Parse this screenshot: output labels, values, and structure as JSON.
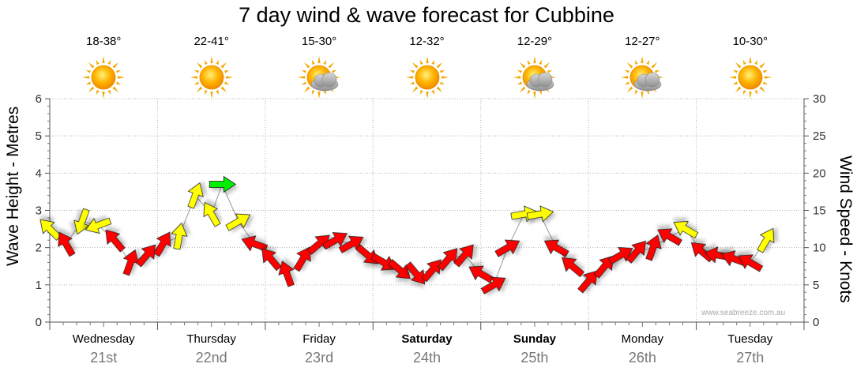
{
  "title": "7 day wind & wave forecast for Cubbine",
  "watermark": "www.seabreeze.com.au",
  "days": [
    {
      "name": "Wednesday",
      "date": "21st",
      "temp": "18-38°",
      "icon": "sun-icon",
      "bold": false
    },
    {
      "name": "Thursday",
      "date": "22nd",
      "temp": "22-41°",
      "icon": "sun-icon",
      "bold": false
    },
    {
      "name": "Friday",
      "date": "23rd",
      "temp": "15-30°",
      "icon": "sun-cloud-icon",
      "bold": false
    },
    {
      "name": "Saturday",
      "date": "24th",
      "temp": "12-32°",
      "icon": "sun-icon",
      "bold": true
    },
    {
      "name": "Sunday",
      "date": "25th",
      "temp": "12-29°",
      "icon": "sun-cloud-icon",
      "bold": true
    },
    {
      "name": "Monday",
      "date": "26th",
      "temp": "12-27°",
      "icon": "sun-cloud-icon",
      "bold": false
    },
    {
      "name": "Tuesday",
      "date": "27th",
      "temp": "10-30°",
      "icon": "sun-icon",
      "bold": false
    }
  ],
  "chart_data": {
    "type": "line",
    "title": "7 day wind & wave forecast for Cubbine",
    "ylabel": "Wave Height - Metres",
    "y2label": "Wind Speed - Knots",
    "ylim": [
      0,
      6
    ],
    "y2lim": [
      0,
      30
    ],
    "yticks": [
      "0",
      "1",
      "2",
      "3",
      "4",
      "5",
      "6"
    ],
    "y2ticks": [
      "0",
      "5",
      "10",
      "15",
      "20",
      "25",
      "30"
    ],
    "grid": true,
    "arrow_colors": {
      "light": "#ffff00",
      "moderate": "#ff0000",
      "strong": "#00ee00"
    },
    "series": [
      {
        "name": "Wind Speed - Knots",
        "points": [
          {
            "d": 0.0,
            "kt": 12.5,
            "dir": 315,
            "c": "light"
          },
          {
            "d": 0.15,
            "kt": 10.5,
            "dir": 330,
            "c": "moderate"
          },
          {
            "d": 0.3,
            "kt": 13.5,
            "dir": 200,
            "c": "light"
          },
          {
            "d": 0.45,
            "kt": 13,
            "dir": 250,
            "c": "light"
          },
          {
            "d": 0.6,
            "kt": 11,
            "dir": 320,
            "c": "moderate"
          },
          {
            "d": 0.75,
            "kt": 8,
            "dir": 20,
            "c": "moderate"
          },
          {
            "d": 0.9,
            "kt": 9,
            "dir": 40,
            "c": "moderate"
          },
          {
            "d": 1.05,
            "kt": 10.5,
            "dir": 30,
            "c": "moderate"
          },
          {
            "d": 1.2,
            "kt": 11.5,
            "dir": 10,
            "c": "light"
          },
          {
            "d": 1.35,
            "kt": 17,
            "dir": 20,
            "c": "light"
          },
          {
            "d": 1.5,
            "kt": 14.5,
            "dir": 330,
            "c": "light"
          },
          {
            "d": 1.6,
            "kt": 18.5,
            "dir": 90,
            "c": "strong"
          },
          {
            "d": 1.75,
            "kt": 13.5,
            "dir": 60,
            "c": "light"
          },
          {
            "d": 1.9,
            "kt": 10.5,
            "dir": 290,
            "c": "moderate"
          },
          {
            "d": 2.05,
            "kt": 8.5,
            "dir": 320,
            "c": "moderate"
          },
          {
            "d": 2.2,
            "kt": 6.5,
            "dir": 340,
            "c": "moderate"
          },
          {
            "d": 2.35,
            "kt": 8.5,
            "dir": 30,
            "c": "moderate"
          },
          {
            "d": 2.5,
            "kt": 10.5,
            "dir": 50,
            "c": "moderate"
          },
          {
            "d": 2.65,
            "kt": 11,
            "dir": 60,
            "c": "moderate"
          },
          {
            "d": 2.8,
            "kt": 10.5,
            "dir": 60,
            "c": "moderate"
          },
          {
            "d": 2.95,
            "kt": 9,
            "dir": 130,
            "c": "moderate"
          },
          {
            "d": 3.1,
            "kt": 8,
            "dir": 120,
            "c": "moderate"
          },
          {
            "d": 3.25,
            "kt": 7,
            "dir": 130,
            "c": "moderate"
          },
          {
            "d": 3.4,
            "kt": 6.5,
            "dir": 140,
            "c": "moderate"
          },
          {
            "d": 3.55,
            "kt": 7,
            "dir": 40,
            "c": "moderate"
          },
          {
            "d": 3.7,
            "kt": 8.5,
            "dir": 40,
            "c": "moderate"
          },
          {
            "d": 3.85,
            "kt": 9,
            "dir": 40,
            "c": "moderate"
          },
          {
            "d": 4.0,
            "kt": 6.5,
            "dir": 300,
            "c": "moderate"
          },
          {
            "d": 4.12,
            "kt": 5,
            "dir": 60,
            "c": "moderate"
          },
          {
            "d": 4.25,
            "kt": 10,
            "dir": 60,
            "c": "moderate"
          },
          {
            "d": 4.4,
            "kt": 14.5,
            "dir": 80,
            "c": "light"
          },
          {
            "d": 4.55,
            "kt": 14.5,
            "dir": 80,
            "c": "light"
          },
          {
            "d": 4.7,
            "kt": 10,
            "dir": 300,
            "c": "moderate"
          },
          {
            "d": 4.85,
            "kt": 7.5,
            "dir": 310,
            "c": "moderate"
          },
          {
            "d": 5.0,
            "kt": 5.5,
            "dir": 40,
            "c": "moderate"
          },
          {
            "d": 5.15,
            "kt": 7.5,
            "dir": 40,
            "c": "moderate"
          },
          {
            "d": 5.3,
            "kt": 9,
            "dir": 60,
            "c": "moderate"
          },
          {
            "d": 5.45,
            "kt": 9.5,
            "dir": 40,
            "c": "moderate"
          },
          {
            "d": 5.6,
            "kt": 10,
            "dir": 20,
            "c": "moderate"
          },
          {
            "d": 5.75,
            "kt": 11.5,
            "dir": 300,
            "c": "moderate"
          },
          {
            "d": 5.9,
            "kt": 12.5,
            "dir": 300,
            "c": "light"
          },
          {
            "d": 6.05,
            "kt": 9.5,
            "dir": 310,
            "c": "moderate"
          },
          {
            "d": 6.2,
            "kt": 9,
            "dir": 280,
            "c": "moderate"
          },
          {
            "d": 6.35,
            "kt": 8.5,
            "dir": 290,
            "c": "moderate"
          },
          {
            "d": 6.5,
            "kt": 8,
            "dir": 300,
            "c": "moderate"
          },
          {
            "d": 6.65,
            "kt": 11,
            "dir": 30,
            "c": "light"
          }
        ]
      }
    ]
  }
}
